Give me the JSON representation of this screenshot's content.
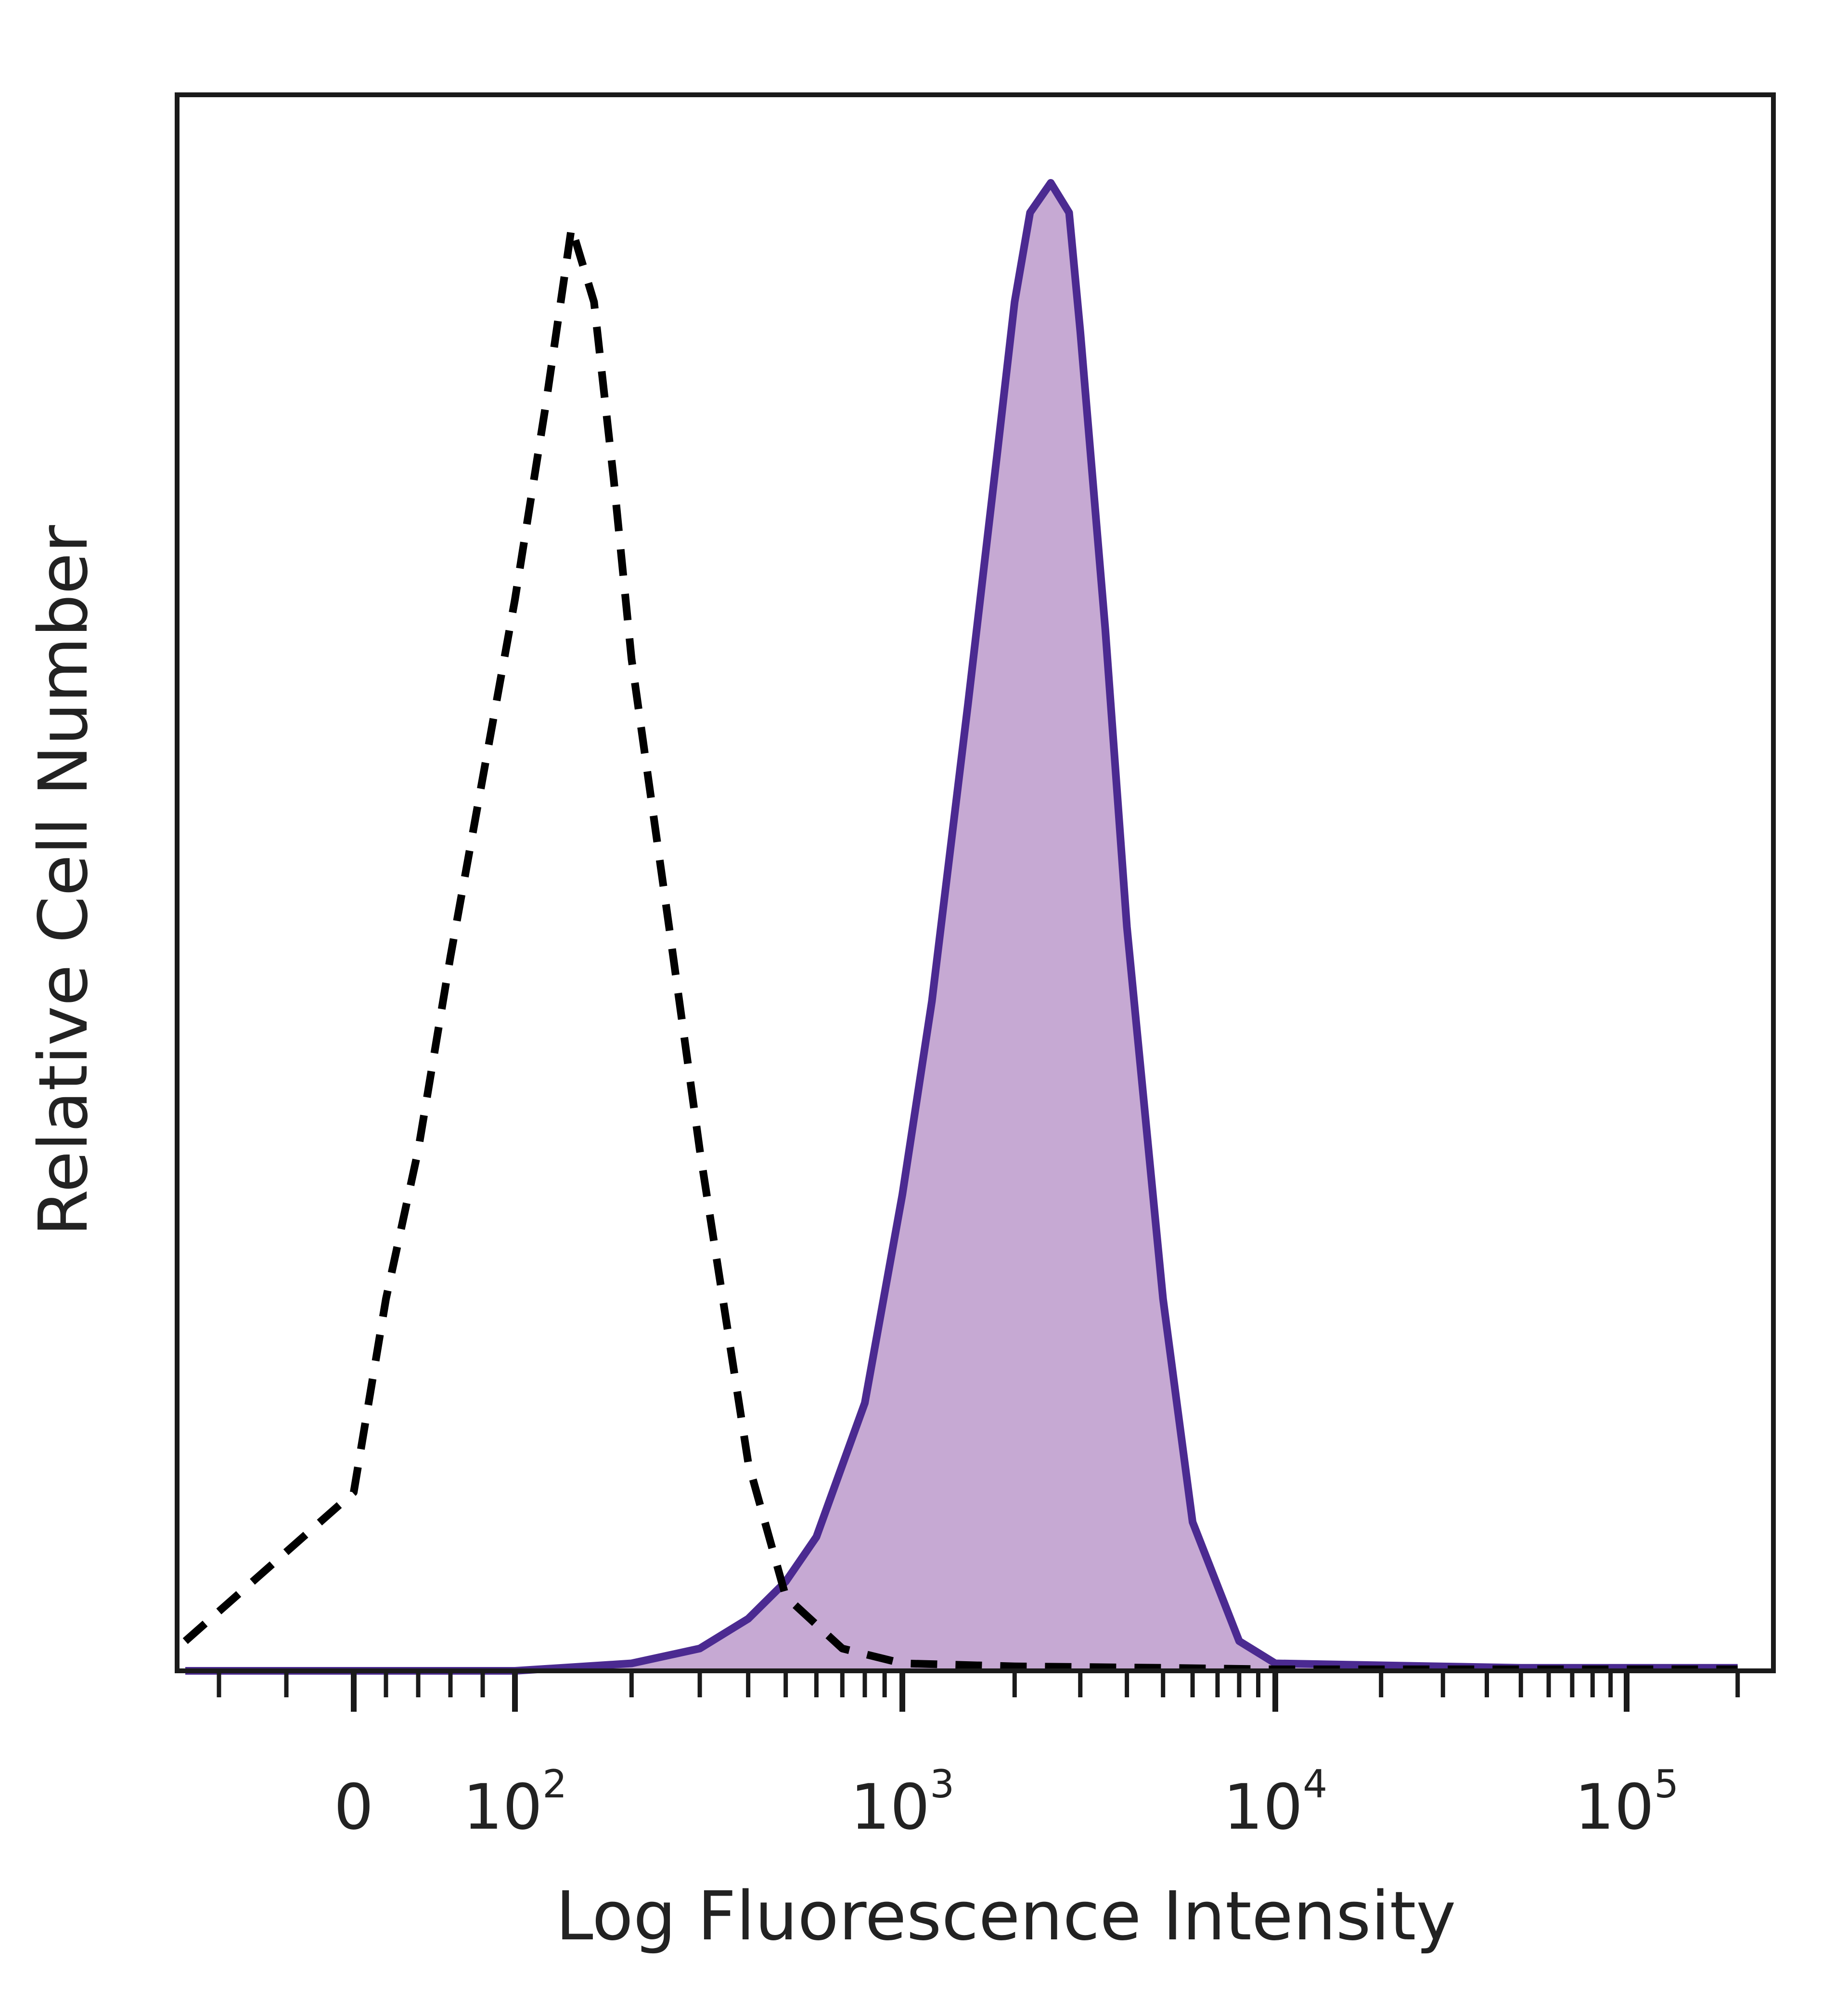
{
  "chart_data": {
    "type": "area",
    "title": "",
    "xlabel": "Log Fluorescence Intensity",
    "ylabel": "Relative Cell Number",
    "x_scale": "biexponential",
    "xlim": [
      -50,
      250000
    ],
    "ylim": [
      0,
      100
    ],
    "grid": false,
    "legend": "none",
    "x_tick_labels": [
      {
        "value": 0,
        "base": "0",
        "exp": ""
      },
      {
        "value": 100,
        "base": "10",
        "exp": "2"
      },
      {
        "value": 1000,
        "base": "10",
        "exp": "3"
      },
      {
        "value": 10000,
        "base": "10",
        "exp": "4"
      },
      {
        "value": 100000,
        "base": "10",
        "exp": "5"
      }
    ],
    "series": [
      {
        "style": "dashed",
        "color": "#000000",
        "fill": "none",
        "x": [
          -50,
          0,
          20,
          40,
          60,
          80,
          100,
          120,
          140,
          160,
          180,
          200,
          250,
          300,
          400,
          500,
          700,
          1000,
          2000,
          5000,
          10000,
          50000,
          200000
        ],
        "y": [
          2,
          12,
          25,
          35,
          48,
          60,
          72,
          85,
          97,
          92,
          80,
          68,
          50,
          35,
          14,
          5,
          1.5,
          0.5,
          0.3,
          0.2,
          0.1,
          0.1,
          0.1
        ]
      },
      {
        "style": "solid",
        "color": "#4b2a91",
        "fill": "#c6a9d3",
        "x": [
          -50,
          100,
          200,
          300,
          400,
          500,
          600,
          800,
          1000,
          1200,
          1500,
          1800,
          2000,
          2200,
          2500,
          2800,
          3000,
          3500,
          4000,
          5000,
          6000,
          8000,
          10000,
          50000,
          200000
        ],
        "y": [
          0,
          0,
          0.5,
          1.5,
          3.5,
          6,
          9,
          18,
          32,
          45,
          65,
          82,
          92,
          98,
          100,
          98,
          90,
          70,
          50,
          25,
          10,
          2,
          0.5,
          0.2,
          0.2
        ]
      }
    ]
  }
}
